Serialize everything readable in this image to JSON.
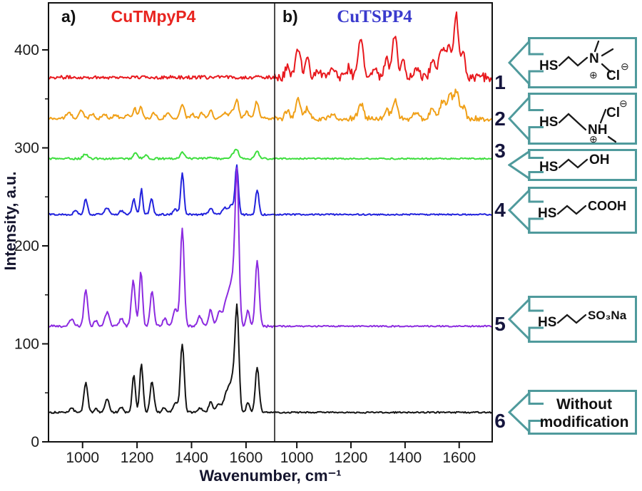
{
  "figure": {
    "panel_a_tag": "a)",
    "panel_b_tag": "b)",
    "title_a": "CuTMpyP4",
    "title_b": "CuTSPP4",
    "title_a_color": "#e8241f",
    "title_b_color": "#3a3acd",
    "xlabel": "Wavenumber, cm⁻¹",
    "ylabel": "Intensity, a.u.",
    "accent_teal": "#4f9a9c",
    "axis_color": "#111111"
  },
  "chart_data": {
    "type": "line",
    "xlabel": "Wavenumber, cm⁻¹",
    "ylabel": "Intensity, a.u.",
    "ylim": [
      0,
      448
    ],
    "y_ticks": [
      0,
      100,
      200,
      300,
      400
    ],
    "y_minor_ticks": [
      50,
      150,
      250,
      350
    ],
    "panels": [
      {
        "id": "a",
        "title": "CuTMpyP4",
        "x_range": [
          875,
          1705
        ],
        "x_ticks": [
          1000,
          1200,
          1400,
          1600
        ]
      },
      {
        "id": "b",
        "title": "CuTSPP4",
        "x_range": [
          918,
          1722
        ],
        "x_ticks": [
          1000,
          1200,
          1400,
          1600
        ]
      }
    ],
    "series": [
      {
        "label": "1",
        "color": "#e8191e",
        "offset": 372,
        "panel_a": {
          "noise": 1.7,
          "peaks": []
        },
        "panel_b": {
          "noise": 4.5,
          "peaks": [
            [
              965,
              12,
              8
            ],
            [
              1005,
              30,
              9
            ],
            [
              1038,
              18,
              8
            ],
            [
              1082,
              8,
              8
            ],
            [
              1132,
              10,
              8
            ],
            [
              1192,
              10,
              8
            ],
            [
              1236,
              40,
              9
            ],
            [
              1286,
              12,
              8
            ],
            [
              1332,
              18,
              8
            ],
            [
              1362,
              45,
              8
            ],
            [
              1392,
              15,
              8
            ],
            [
              1442,
              10,
              9
            ],
            [
              1502,
              15,
              10
            ],
            [
              1536,
              28,
              11
            ],
            [
              1560,
              30,
              8
            ],
            [
              1588,
              65,
              9
            ],
            [
              1614,
              24,
              7
            ]
          ]
        }
      },
      {
        "label": "2",
        "color": "#f0a018",
        "offset": 330,
        "panel_a": {
          "noise": 1.4,
          "peaks": [
            [
              950,
              6,
              9
            ],
            [
              995,
              8,
              8
            ],
            [
              1035,
              5,
              8
            ],
            [
              1080,
              4,
              8
            ],
            [
              1122,
              4,
              8
            ],
            [
              1165,
              5,
              7
            ],
            [
              1192,
              10,
              6
            ],
            [
              1214,
              12,
              6
            ],
            [
              1262,
              6,
              7
            ],
            [
              1312,
              6,
              8
            ],
            [
              1366,
              15,
              7
            ],
            [
              1402,
              5,
              7
            ],
            [
              1437,
              5,
              7
            ],
            [
              1470,
              8,
              7
            ],
            [
              1522,
              6,
              8
            ],
            [
              1547,
              8,
              7
            ],
            [
              1566,
              19,
              7
            ],
            [
              1602,
              7,
              7
            ],
            [
              1639,
              17,
              7
            ]
          ]
        },
        "panel_b": {
          "noise": 2.8,
          "peaks": [
            [
              965,
              8,
              8
            ],
            [
              1005,
              20,
              9
            ],
            [
              1038,
              10,
              8
            ],
            [
              1132,
              6,
              8
            ],
            [
              1236,
              16,
              9
            ],
            [
              1332,
              8,
              8
            ],
            [
              1362,
              20,
              8
            ],
            [
              1442,
              6,
              9
            ],
            [
              1502,
              10,
              11
            ],
            [
              1540,
              18,
              10
            ],
            [
              1566,
              24,
              9
            ],
            [
              1590,
              28,
              9
            ],
            [
              1616,
              12,
              7
            ]
          ]
        }
      },
      {
        "label": "3",
        "color": "#3ede3e",
        "offset": 289,
        "panel_a": {
          "noise": 1.0,
          "peaks": [
            [
              1010,
              5,
              8
            ],
            [
              1195,
              6,
              8
            ],
            [
              1232,
              3,
              7
            ],
            [
              1366,
              6,
              8
            ],
            [
              1470,
              2,
              7
            ],
            [
              1552,
              4,
              8
            ],
            [
              1566,
              9,
              7
            ],
            [
              1641,
              7,
              7
            ]
          ]
        },
        "panel_b": {
          "noise": 0.7,
          "peaks": []
        }
      },
      {
        "label": "4",
        "color": "#2222dd",
        "offset": 232,
        "panel_a": {
          "noise": 1.0,
          "peaks": [
            [
              975,
              4,
              7
            ],
            [
              1012,
              16,
              6
            ],
            [
              1090,
              7,
              8
            ],
            [
              1142,
              4,
              7
            ],
            [
              1188,
              16,
              6
            ],
            [
              1216,
              26,
              5
            ],
            [
              1253,
              17,
              6
            ],
            [
              1340,
              6,
              7
            ],
            [
              1366,
              42,
              6
            ],
            [
              1470,
              7,
              7
            ],
            [
              1522,
              7,
              10
            ],
            [
              1547,
              10,
              8
            ],
            [
              1566,
              50,
              6
            ],
            [
              1641,
              25,
              6
            ]
          ]
        },
        "panel_b": {
          "noise": 0.7,
          "peaks": []
        }
      },
      {
        "label": "5",
        "color": "#8c2be0",
        "offset": 118,
        "panel_a": {
          "noise": 1.2,
          "peaks": [
            [
              960,
              7,
              8
            ],
            [
              1012,
              37,
              7
            ],
            [
              1048,
              6,
              6
            ],
            [
              1090,
              14,
              8
            ],
            [
              1142,
              8,
              7
            ],
            [
              1186,
              46,
              7
            ],
            [
              1214,
              56,
              6
            ],
            [
              1255,
              35,
              7
            ],
            [
              1302,
              8,
              7
            ],
            [
              1340,
              18,
              8
            ],
            [
              1366,
              100,
              7
            ],
            [
              1430,
              10,
              7
            ],
            [
              1470,
              17,
              7
            ],
            [
              1502,
              14,
              9
            ],
            [
              1532,
              30,
              12
            ],
            [
              1552,
              38,
              9
            ],
            [
              1567,
              150,
              7
            ],
            [
              1607,
              16,
              6
            ],
            [
              1641,
              66,
              7
            ]
          ]
        },
        "panel_b": {
          "noise": 0.7,
          "peaks": []
        }
      },
      {
        "label": "6",
        "color": "#141414",
        "offset": 30,
        "panel_a": {
          "noise": 1.0,
          "peaks": [
            [
              960,
              5,
              7
            ],
            [
              1012,
              30,
              7
            ],
            [
              1048,
              4,
              6
            ],
            [
              1090,
              13,
              8
            ],
            [
              1142,
              5,
              7
            ],
            [
              1188,
              38,
              6
            ],
            [
              1216,
              50,
              6
            ],
            [
              1255,
              32,
              7
            ],
            [
              1300,
              5,
              7
            ],
            [
              1340,
              10,
              8
            ],
            [
              1366,
              70,
              7
            ],
            [
              1430,
              5,
              7
            ],
            [
              1470,
              11,
              7
            ],
            [
              1500,
              8,
              9
            ],
            [
              1532,
              22,
              12
            ],
            [
              1552,
              28,
              9
            ],
            [
              1567,
              103,
              7
            ],
            [
              1607,
              10,
              6
            ],
            [
              1641,
              46,
              7
            ]
          ]
        },
        "panel_b": {
          "noise": 0.7,
          "peaks": []
        }
      }
    ]
  },
  "annotations": [
    {
      "num": "1",
      "thiol": "HS",
      "amine": "N",
      "counterion": "Cl",
      "plus": "⊕",
      "minus": "⊖"
    },
    {
      "num": "2",
      "thiol": "HS",
      "amine": "NH",
      "counterion": "Cl",
      "plus": "⊕",
      "minus": "⊖"
    },
    {
      "num": "3",
      "thiol": "HS",
      "end_group": "OH"
    },
    {
      "num": "4",
      "thiol": "HS",
      "end_group": "COOH"
    },
    {
      "num": "5",
      "thiol": "HS",
      "end_group": "SO₃Na"
    },
    {
      "num": "6",
      "text_line1": "Without",
      "text_line2": "modification"
    }
  ]
}
